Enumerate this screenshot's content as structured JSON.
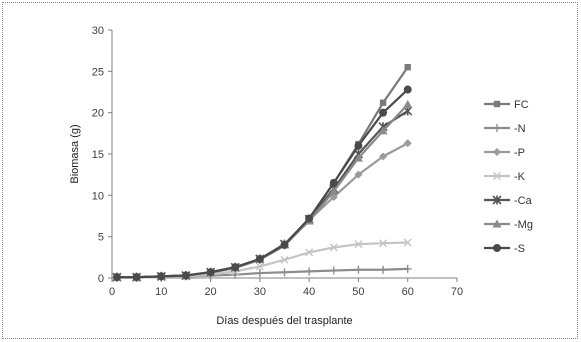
{
  "chart_data": {
    "type": "line",
    "title": "",
    "xlabel": "Días después del trasplante",
    "ylabel": "Biomasa (g)",
    "xlim": [
      0,
      70
    ],
    "ylim": [
      0,
      30
    ],
    "xticks": [
      0,
      10,
      20,
      30,
      40,
      50,
      60,
      70
    ],
    "yticks": [
      0,
      5,
      10,
      15,
      20,
      25,
      30
    ],
    "grid": false,
    "legend_position": "right",
    "x": [
      1,
      5,
      10,
      15,
      20,
      25,
      30,
      35,
      40,
      45,
      50,
      55,
      60
    ],
    "series": [
      {
        "name": "FC",
        "marker": "square",
        "color": "#7a7a7a",
        "values": [
          0.1,
          0.1,
          0.2,
          0.3,
          0.7,
          1.3,
          2.3,
          4.0,
          7.2,
          11.5,
          16.2,
          21.2,
          25.5
        ]
      },
      {
        "name": "-N",
        "marker": "plus",
        "color": "#8c8c8c",
        "values": [
          0.05,
          0.05,
          0.1,
          0.2,
          0.3,
          0.4,
          0.6,
          0.7,
          0.8,
          0.9,
          1.0,
          1.0,
          1.1
        ]
      },
      {
        "name": "-P",
        "marker": "diamond",
        "color": "#9a9a9a",
        "values": [
          0.1,
          0.1,
          0.2,
          0.3,
          0.6,
          1.2,
          2.2,
          3.9,
          7.0,
          9.8,
          12.5,
          14.7,
          16.3
        ]
      },
      {
        "name": "-K",
        "marker": "x",
        "color": "#c4c4c4",
        "values": [
          0.05,
          0.05,
          0.1,
          0.2,
          0.4,
          0.8,
          1.4,
          2.2,
          3.1,
          3.7,
          4.1,
          4.2,
          4.3
        ]
      },
      {
        "name": "-Ca",
        "marker": "asterisk",
        "color": "#555555",
        "values": [
          0.1,
          0.1,
          0.2,
          0.3,
          0.7,
          1.3,
          2.3,
          4.1,
          7.1,
          10.8,
          15.0,
          18.3,
          20.2
        ]
      },
      {
        "name": "-Mg",
        "marker": "triangle",
        "color": "#8a8a8a",
        "values": [
          0.1,
          0.1,
          0.2,
          0.3,
          0.7,
          1.3,
          2.3,
          4.0,
          6.9,
          10.5,
          14.5,
          17.8,
          21.0
        ]
      },
      {
        "name": "-S",
        "marker": "circle",
        "color": "#4a4a4a",
        "values": [
          0.1,
          0.1,
          0.2,
          0.3,
          0.7,
          1.3,
          2.3,
          4.0,
          7.2,
          11.5,
          16.0,
          20.0,
          22.8
        ]
      }
    ]
  }
}
